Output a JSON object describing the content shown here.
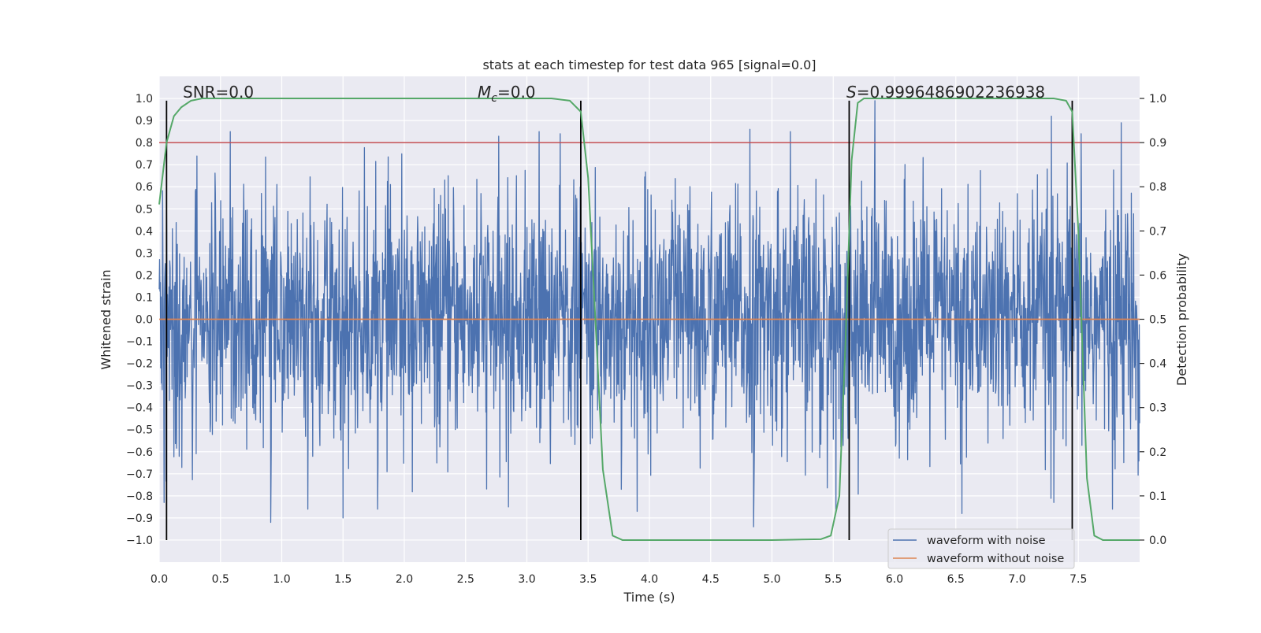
{
  "chart_data": {
    "type": "line",
    "title": "stats at each timestep for test data 965 [signal=0.0]",
    "xlabel": "Time (s)",
    "ylabel": "Whitened strain",
    "y2label": "Detection probability",
    "xlim": [
      0.0,
      8.0
    ],
    "ylim": [
      -1.1,
      1.1
    ],
    "y2lim": [
      -0.05,
      1.05
    ],
    "xticks": [
      "0.0",
      "0.5",
      "1.0",
      "1.5",
      "2.0",
      "2.5",
      "3.0",
      "3.5",
      "4.0",
      "4.5",
      "5.0",
      "5.5",
      "6.0",
      "6.5",
      "7.0",
      "7.5"
    ],
    "yticks": [
      "1.0",
      "0.9",
      "0.8",
      "0.7",
      "0.6",
      "0.5",
      "0.4",
      "0.3",
      "0.2",
      "0.1",
      "0.0",
      "−0.1",
      "−0.2",
      "−0.3",
      "−0.4",
      "−0.5",
      "−0.6",
      "−0.7",
      "−0.8",
      "−0.9",
      "−1.0"
    ],
    "y2ticks": [
      "1.0",
      "0.9",
      "0.8",
      "0.7",
      "0.6",
      "0.5",
      "0.4",
      "0.3",
      "0.2",
      "0.1",
      "0.0"
    ],
    "annotations": {
      "snr": "SNR=0.0",
      "mc_symbol": "M",
      "mc_sub": "c",
      "mc_value": "=0.0",
      "s_symbol": "S",
      "s_value": "=0.9996486902236938"
    },
    "legend": {
      "position": "lower-right",
      "entries": [
        {
          "label": "waveform with noise",
          "color": "#4c72b0"
        },
        {
          "label": "waveform without noise",
          "color": "#dd8452"
        }
      ]
    },
    "threshold_line": {
      "value_y2": 0.9,
      "color": "#c44e52"
    },
    "vertical_markers": [
      0.06,
      3.44,
      5.63,
      7.45
    ],
    "noise_waveform": {
      "color": "#4c72b0",
      "description_stat": "whitened strain noise, roughly within [-0.93, 0.99]",
      "peaks_positive": [
        [
          0.06,
          0.5
        ],
        [
          0.58,
          0.85
        ],
        [
          1.5,
          0.85
        ],
        [
          3.1,
          0.85
        ],
        [
          4.82,
          0.86
        ],
        [
          5.15,
          0.85
        ],
        [
          5.84,
          0.99
        ],
        [
          7.28,
          0.92
        ],
        [
          7.85,
          0.89
        ]
      ],
      "peaks_negative": [
        [
          0.04,
          -0.83
        ],
        [
          0.91,
          -0.92
        ],
        [
          1.5,
          -0.9
        ],
        [
          2.85,
          -0.85
        ],
        [
          3.9,
          -0.87
        ],
        [
          4.85,
          -0.94
        ],
        [
          6.55,
          -0.88
        ],
        [
          7.3,
          -0.83
        ]
      ]
    },
    "clean_waveform": {
      "color": "#dd8452",
      "value": 0.0
    },
    "detection_probability": {
      "color": "#55a868",
      "x": [
        0.0,
        0.06,
        0.12,
        0.18,
        0.26,
        0.35,
        0.5,
        1.0,
        2.0,
        3.0,
        3.2,
        3.35,
        3.44,
        3.5,
        3.55,
        3.62,
        3.7,
        3.78,
        4.0,
        5.0,
        5.4,
        5.48,
        5.55,
        5.6,
        5.65,
        5.7,
        5.75,
        5.85,
        6.0,
        7.0,
        7.3,
        7.4,
        7.45,
        7.5,
        7.57,
        7.63,
        7.7,
        7.8,
        8.0
      ],
      "y": [
        0.76,
        0.9,
        0.96,
        0.98,
        0.995,
        1.0,
        1.0,
        1.0,
        1.0,
        1.0,
        1.0,
        0.995,
        0.97,
        0.82,
        0.55,
        0.16,
        0.01,
        0.0,
        0.0,
        0.0,
        0.002,
        0.01,
        0.1,
        0.45,
        0.86,
        0.99,
        1.0,
        1.0,
        1.0,
        1.0,
        1.0,
        0.995,
        0.97,
        0.7,
        0.14,
        0.01,
        0.0,
        0.0,
        0.0
      ]
    }
  }
}
